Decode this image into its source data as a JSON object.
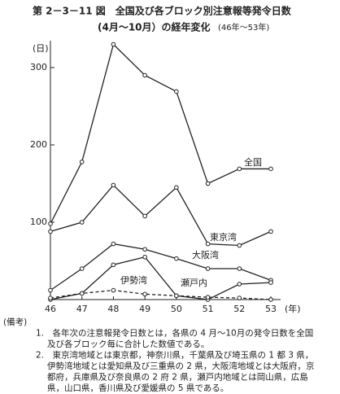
{
  "chart_data": {
    "type": "line",
    "title": "第 2－3－11 図　全国及び各ブロック別注意報等発令日数",
    "subtitle": "(4月～10月）の経年変化",
    "subtitle_range": "(46年～53年)",
    "y_label": "(日)",
    "x_label": "(年)",
    "categories": [
      "46",
      "47",
      "48",
      "49",
      "50",
      "51",
      "52",
      "53"
    ],
    "ylim": [
      0,
      340
    ],
    "yticks": [
      100,
      200,
      300
    ],
    "grid": false,
    "series": [
      {
        "name": "全国",
        "color": "#222222",
        "dash": false,
        "values": [
          98,
          178,
          330,
          290,
          269,
          150,
          169,
          169
        ]
      },
      {
        "name": "東京湾",
        "color": "#222222",
        "dash": false,
        "values": [
          88,
          100,
          148,
          108,
          145,
          72,
          70,
          88
        ]
      },
      {
        "name": "大阪湾",
        "color": "#222222",
        "dash": false,
        "values": [
          12,
          40,
          72,
          65,
          53,
          40,
          40,
          25
        ]
      },
      {
        "name": "伊勢湾",
        "color": "#222222",
        "dash": false,
        "values": [
          0,
          8,
          45,
          55,
          5,
          0,
          20,
          22
        ]
      },
      {
        "name": "瀬戸内",
        "color": "#222222",
        "dash": true,
        "values": [
          2,
          8,
          12,
          7,
          5,
          3,
          2,
          0
        ]
      }
    ],
    "notes": [
      "(備考)",
      "1.　各年次の注意報発令日数とは，各県の 4 月～10月の発令日数を全国",
      "及び各ブロック毎に合計した数値である。",
      "2.　東京湾地域とは東京都，神奈川県，千葉県及び埼玉県の 1 都 3 県，",
      "伊勢湾地域とは愛知県及び三重県の 2 県，大阪湾地域とは大阪府，京",
      "都府，兵庫県及び奈良県の 2 府 2 県，瀬戸内地域とは岡山県，広島",
      "県，山口県，香川県及び愛媛県の 5 県である。"
    ]
  }
}
